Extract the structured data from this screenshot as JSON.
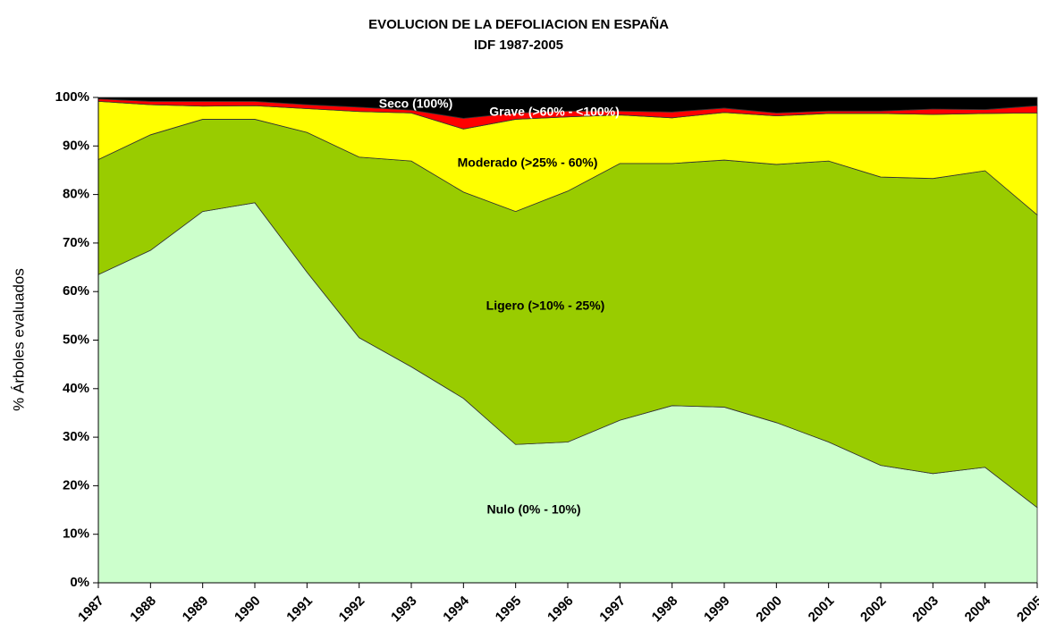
{
  "chart_data": {
    "type": "stacked_area",
    "title": "EVOLUCION DE LA DEFOLIACION EN ESPAÑA",
    "subtitle": "IDF 1987-2005",
    "y_label": "% Árboles evaluados",
    "categories": [
      "1987",
      "1988",
      "1989",
      "1990",
      "1991",
      "1992",
      "1993",
      "1994",
      "1995",
      "1996",
      "1997",
      "1998",
      "1999",
      "2000",
      "2001",
      "2002",
      "2003",
      "2004",
      "2005"
    ],
    "series": [
      {
        "name": "Nulo (0% - 10%)",
        "color": "#ccffcc",
        "label_color": "#000000",
        "values": [
          63.5,
          68.5,
          76.5,
          78.3,
          64,
          50.5,
          44.5,
          38,
          28.5,
          29,
          33.5,
          36.5,
          36.2,
          33,
          29,
          24.2,
          22.5,
          23.8,
          15.5
        ]
      },
      {
        "name": "Ligero (>10% - 25%)",
        "color": "#99cc00",
        "label_color": "#000000",
        "values": [
          23.7,
          23.8,
          19,
          17.2,
          28.8,
          37.2,
          42.4,
          42.5,
          48,
          51.7,
          52.9,
          49.9,
          50.9,
          53.2,
          57.9,
          59.4,
          60.8,
          61.1,
          60.3
        ]
      },
      {
        "name": "Moderado (>25% - 60%)",
        "color": "#ffff00",
        "label_color": "#000000",
        "values": [
          12,
          6.2,
          2.7,
          2.8,
          4.9,
          9.4,
          9.9,
          13,
          19,
          15.3,
          10,
          9.4,
          9.8,
          10,
          9.8,
          13.1,
          13.2,
          11.8,
          21
        ]
      },
      {
        "name": "Grave (>60% - <100%)",
        "color": "#ff0000",
        "label_color": "#ffffff",
        "values": [
          0.5,
          0.7,
          1,
          0.9,
          0.8,
          0.9,
          0.6,
          2.2,
          1.3,
          1.2,
          0.8,
          1.2,
          0.9,
          0.6,
          0.5,
          0.5,
          1.1,
          0.8,
          1.5
        ]
      },
      {
        "name": "Seco (100%)",
        "color": "#000000",
        "label_color": "#ffffff",
        "values": [
          0.3,
          0.8,
          0.8,
          0.8,
          1.5,
          2,
          2.6,
          4.3,
          3.2,
          2.8,
          2.8,
          3,
          2.2,
          3.2,
          2.8,
          2.8,
          2.4,
          2.5,
          1.7
        ]
      }
    ],
    "ylim": [
      0,
      100
    ],
    "yticks": [
      {
        "value": 0,
        "label": "0%"
      },
      {
        "value": 10,
        "label": "10%"
      },
      {
        "value": 20,
        "label": "20%"
      },
      {
        "value": 30,
        "label": "30%"
      },
      {
        "value": 40,
        "label": "40%"
      },
      {
        "value": 50,
        "label": "50%"
      },
      {
        "value": 60,
        "label": "60%"
      },
      {
        "value": 70,
        "label": "70%"
      },
      {
        "value": 80,
        "label": "80%"
      },
      {
        "value": 90,
        "label": "90%"
      },
      {
        "value": 100,
        "label": "100%"
      }
    ],
    "grid": false
  }
}
